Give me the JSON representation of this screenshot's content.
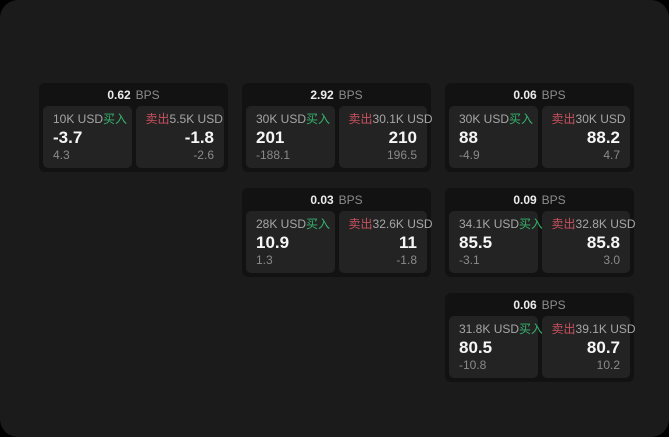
{
  "labels": {
    "bps": "BPS",
    "buy": "买入",
    "sell": "卖出"
  },
  "colors": {
    "backdrop": "#000000",
    "window_bg": "#1b1b1b",
    "card_bg": "#121212",
    "panel_bg": "#232323",
    "buy_accent": "#35b46d",
    "sell_accent": "#c9515f"
  },
  "cards": [
    {
      "bps": "0.62",
      "buy": {
        "size": "10K USD",
        "value": "-3.7",
        "sub": "4.3"
      },
      "sell": {
        "size": "5.5K USD",
        "value": "-1.8",
        "sub": "-2.6"
      }
    },
    {
      "bps": "2.92",
      "buy": {
        "size": "30K USD",
        "value": "201",
        "sub": "-188.1"
      },
      "sell": {
        "size": "30.1K USD",
        "value": "210",
        "sub": "196.5"
      }
    },
    {
      "bps": "0.06",
      "buy": {
        "size": "30K USD",
        "value": "88",
        "sub": "-4.9"
      },
      "sell": {
        "size": "30K USD",
        "value": "88.2",
        "sub": "4.7"
      }
    },
    {
      "bps": "0.03",
      "buy": {
        "size": "28K USD",
        "value": "10.9",
        "sub": "1.3"
      },
      "sell": {
        "size": "32.6K USD",
        "value": "11",
        "sub": "-1.8"
      }
    },
    {
      "bps": "0.09",
      "buy": {
        "size": "34.1K USD",
        "value": "85.5",
        "sub": "-3.1"
      },
      "sell": {
        "size": "32.8K USD",
        "value": "85.8",
        "sub": "3.0"
      }
    },
    {
      "bps": "0.06",
      "buy": {
        "size": "31.8K USD",
        "value": "80.5",
        "sub": "-10.8"
      },
      "sell": {
        "size": "39.1K USD",
        "value": "80.7",
        "sub": "10.2"
      }
    }
  ]
}
